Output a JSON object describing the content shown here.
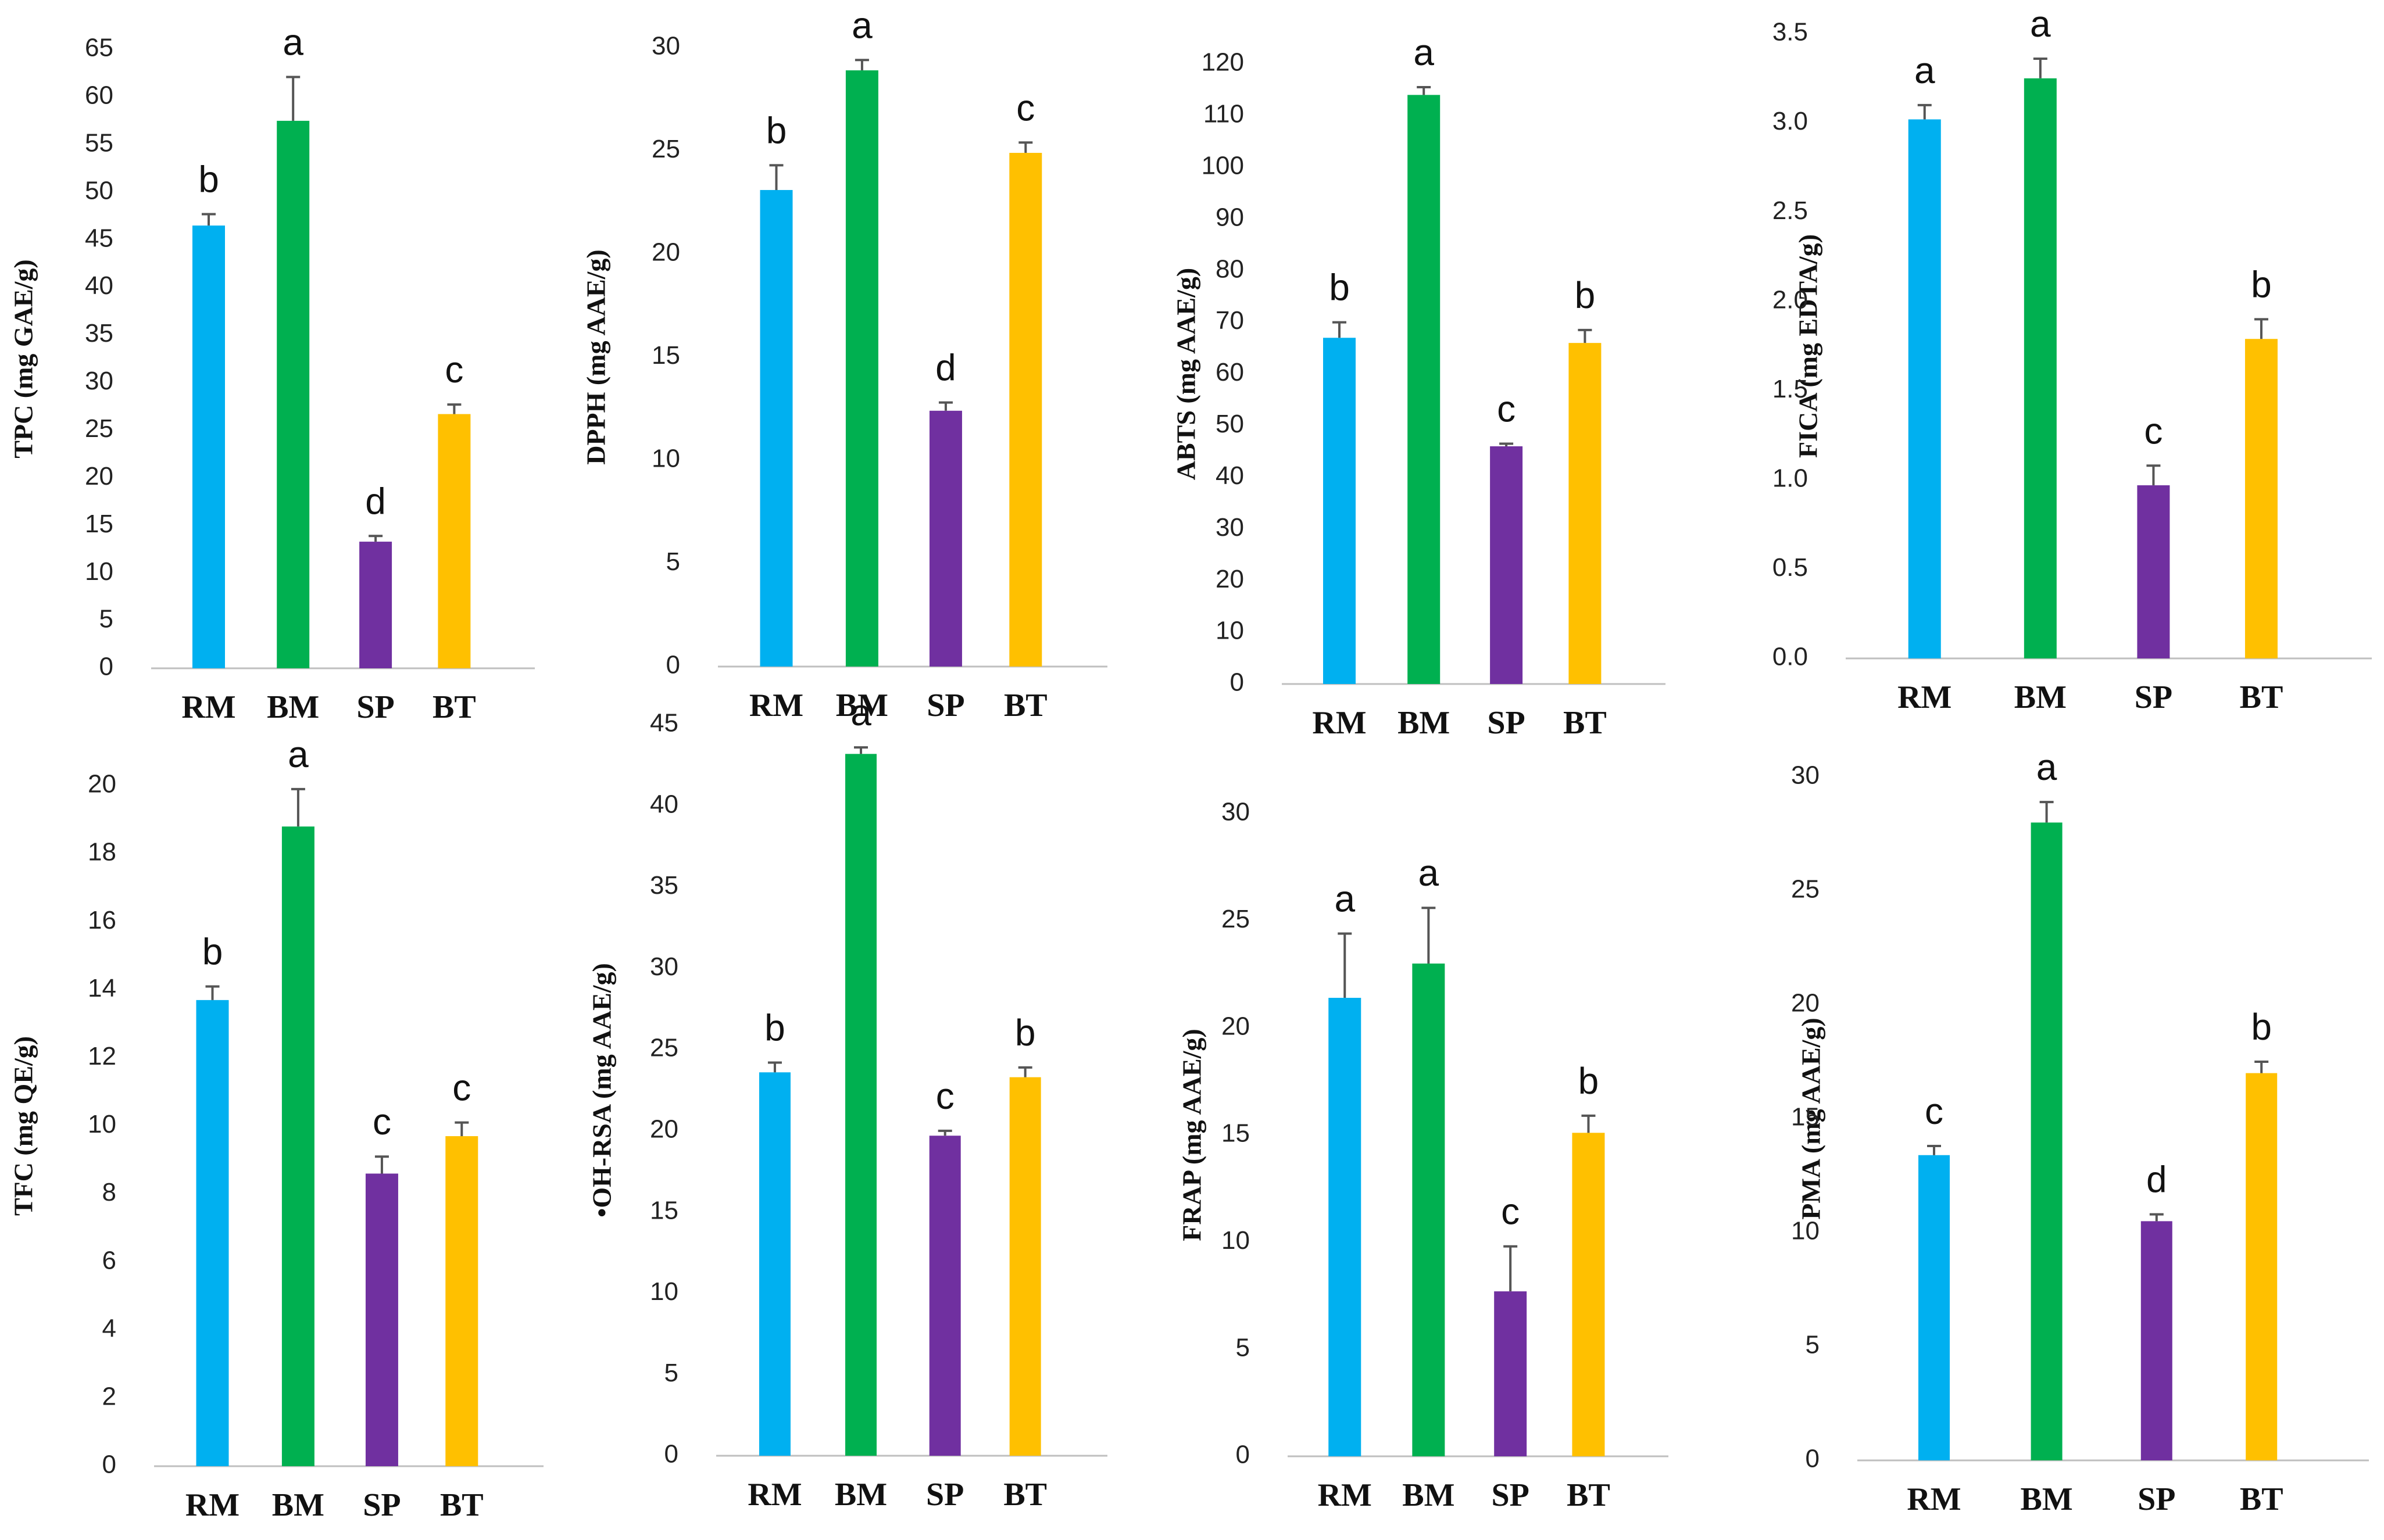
{
  "colors": {
    "RM": "#00B0F0",
    "BM": "#00B050",
    "SP": "#7030A0",
    "BT": "#FFC000",
    "axis": "#bfbfbf",
    "error_bar": "#555555"
  },
  "chart_data": [
    {
      "type": "bar",
      "ylabel": "TPC (mg GAE/g)",
      "categories": [
        "RM",
        "BM",
        "SP",
        "BT"
      ],
      "values": [
        46.5,
        57.5,
        13.3,
        26.7
      ],
      "errors": [
        1.2,
        4.6,
        0.6,
        1.0
      ],
      "significance": [
        "b",
        "a",
        "d",
        "c"
      ],
      "ylim": [
        0,
        65
      ],
      "yticks": [
        "0",
        "5",
        "10",
        "15",
        "20",
        "25",
        "30",
        "35",
        "40",
        "45",
        "50",
        "55",
        "60",
        "65"
      ]
    },
    {
      "type": "bar",
      "ylabel": "DPPH (mg AAE/g)",
      "categories": [
        "RM",
        "BM",
        "SP",
        "BT"
      ],
      "values": [
        23.1,
        28.9,
        12.4,
        24.9
      ],
      "errors": [
        1.2,
        0.5,
        0.4,
        0.5
      ],
      "significance": [
        "b",
        "a",
        "d",
        "c"
      ],
      "ylim": [
        0,
        30
      ],
      "yticks": [
        "0",
        "5",
        "10",
        "15",
        "20",
        "25",
        "30"
      ]
    },
    {
      "type": "bar",
      "ylabel": "ABTS (mg AAE/g)",
      "categories": [
        "RM",
        "BM",
        "SP",
        "BT"
      ],
      "values": [
        67,
        114,
        46,
        66
      ],
      "errors": [
        3,
        1.5,
        0.5,
        2.5
      ],
      "significance": [
        "b",
        "a",
        "c",
        "b"
      ],
      "ylim": [
        0,
        120
      ],
      "yticks": [
        "0",
        "10",
        "20",
        "30",
        "40",
        "50",
        "60",
        "70",
        "80",
        "90",
        "100",
        "110",
        "120"
      ]
    },
    {
      "type": "bar",
      "ylabel": "FICA (mg EDTA/g)",
      "categories": [
        "RM",
        "BM",
        "SP",
        "BT"
      ],
      "values": [
        3.02,
        3.25,
        0.97,
        1.79
      ],
      "errors": [
        0.08,
        0.11,
        0.11,
        0.11
      ],
      "significance": [
        "a",
        "a",
        "c",
        "b"
      ],
      "ylim": [
        0,
        3.5
      ],
      "yticks": [
        "0.0",
        "0.5",
        "1.0",
        "1.5",
        "2.0",
        "2.5",
        "3.0",
        "3.5"
      ]
    },
    {
      "type": "bar",
      "ylabel": "TFC (mg QE/g)",
      "categories": [
        "RM",
        "BM",
        "SP",
        "BT"
      ],
      "values": [
        13.7,
        18.8,
        8.6,
        9.7
      ],
      "errors": [
        0.4,
        1.1,
        0.5,
        0.4
      ],
      "significance": [
        "b",
        "a",
        "c",
        "c"
      ],
      "ylim": [
        0,
        20
      ],
      "yticks": [
        "0",
        "2",
        "4",
        "6",
        "8",
        "10",
        "12",
        "14",
        "16",
        "18",
        "20"
      ]
    },
    {
      "type": "bar",
      "ylabel": "•OH-RSA (mg AAE/g)",
      "categories": [
        "RM",
        "BM",
        "SP",
        "BT"
      ],
      "values": [
        23.6,
        43.2,
        19.7,
        23.3
      ],
      "errors": [
        0.6,
        0.4,
        0.3,
        0.6
      ],
      "significance": [
        "b",
        "a",
        "c",
        "b"
      ],
      "ylim": [
        0,
        45
      ],
      "yticks": [
        "0",
        "5",
        "10",
        "15",
        "20",
        "25",
        "30",
        "35",
        "40",
        "45"
      ]
    },
    {
      "type": "bar",
      "ylabel": "FRAP (mg AAE/g)",
      "categories": [
        "RM",
        "BM",
        "SP",
        "BT"
      ],
      "values": [
        21.4,
        23.0,
        7.7,
        15.1
      ],
      "errors": [
        3.0,
        2.6,
        2.1,
        0.8
      ],
      "significance": [
        "a",
        "a",
        "c",
        "b"
      ],
      "ylim": [
        0,
        30
      ],
      "yticks": [
        "0",
        "5",
        "10",
        "15",
        "20",
        "25",
        "30"
      ]
    },
    {
      "type": "bar",
      "ylabel": "PMA (mg AAE/g)",
      "categories": [
        "RM",
        "BM",
        "SP",
        "BT"
      ],
      "values": [
        13.4,
        28.0,
        10.5,
        17.0
      ],
      "errors": [
        0.4,
        0.9,
        0.3,
        0.5
      ],
      "significance": [
        "c",
        "a",
        "d",
        "b"
      ],
      "ylim": [
        0,
        30
      ],
      "yticks": [
        "0",
        "5",
        "10",
        "15",
        "20",
        "25",
        "30"
      ]
    }
  ]
}
